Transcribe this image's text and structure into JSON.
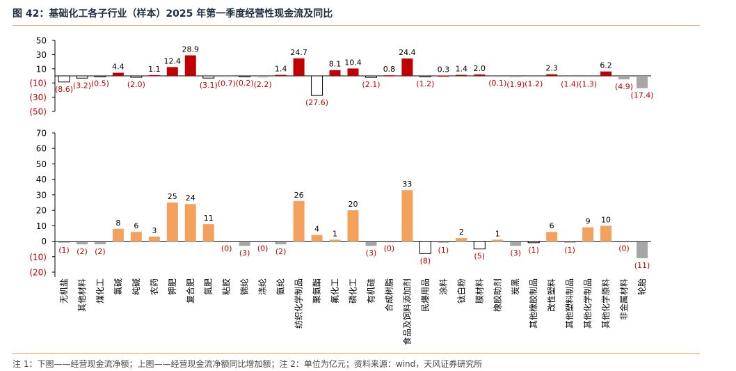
{
  "figure": {
    "title": "图 42：基础化工各子行业（样本）2025 年第一季度经营性现金流及同比",
    "note": "注 1：下图——经营现金流净额；上图——经营现金流净额同比增加额；注 2：单位为亿元；资料来源：wind，天风证券研究所"
  },
  "colors": {
    "positive_top": "#c00000",
    "negative_top": "#ffffff",
    "negative_top_border": "#000000",
    "muted_top": "#a6a6a6",
    "positive_bottom": "#f4a15d",
    "negative_bottom": "#a6a6a6",
    "highlight_bottom": "#ffffff",
    "negative_label": "#c00000",
    "positive_label": "#000000",
    "rule": "#f0a868"
  },
  "chart_data": [
    {
      "type": "bar",
      "title": "",
      "xlabel": "",
      "ylabel": "",
      "ylim": [
        -50,
        50
      ],
      "yticks": [
        "50",
        "30",
        "10",
        "(10)",
        "(30)",
        "(50)"
      ],
      "categories": [
        "无机盐",
        "其他材料",
        "煤化工",
        "氯碱",
        "纯碱",
        "农药",
        "钾肥",
        "复合肥",
        "氮肥",
        "粘胶",
        "锦纶",
        "涤纶",
        "氨纶",
        "纺织化学制品",
        "聚氨酯",
        "氟化工",
        "磷化工",
        "有机硅",
        "合成树脂",
        "食品及饲料添加剂",
        "民爆用品",
        "涂料",
        "钛白粉",
        "膜材料",
        "橡胶助剂",
        "炭黑",
        "其他橡胶制品",
        "改性塑料",
        "其他塑料制品",
        "其他化学制品",
        "其他化学原料",
        "非金属材料",
        "轮胎"
      ],
      "values": [
        -8.6,
        -3.2,
        -0.5,
        4.4,
        -2.0,
        1.1,
        12.4,
        28.9,
        -3.1,
        -0.7,
        -0.2,
        -2.2,
        1.4,
        24.7,
        -27.6,
        8.1,
        10.4,
        -2.1,
        0.8,
        24.4,
        -1.2,
        0.3,
        1.4,
        2.0,
        -0.1,
        -1.9,
        -1.2,
        2.3,
        -1.4,
        -1.3,
        6.2,
        -4.9,
        -17.4
      ],
      "labels": [
        "(8.6)",
        "(3.2)",
        "(0.5)",
        "4.4",
        "(2.0)",
        "1.1",
        "12.4",
        "28.9",
        "(3.1)",
        "(0.7)",
        "(0.2)",
        "(2.2)",
        "1.4",
        "24.7",
        "(27.6)",
        "8.1",
        "10.4",
        "(2.1)",
        "0.8",
        "24.4",
        "(1.2)",
        "0.3",
        "1.4",
        "2.0",
        "(0.1)",
        "(1.9)",
        "(1.2)",
        "2.3",
        "(1.4)",
        "(1.3)",
        "6.2",
        "(4.9)",
        "(17.4)"
      ],
      "muted": [
        false,
        false,
        false,
        false,
        false,
        false,
        false,
        false,
        false,
        true,
        false,
        true,
        false,
        false,
        false,
        false,
        false,
        false,
        false,
        false,
        false,
        false,
        false,
        false,
        true,
        true,
        true,
        false,
        true,
        true,
        false,
        true,
        true
      ],
      "grid": false,
      "legend": "none"
    },
    {
      "type": "bar",
      "title": "",
      "xlabel": "",
      "ylabel": "",
      "ylim": [
        -20,
        70
      ],
      "yticks": [
        "70",
        "60",
        "50",
        "40",
        "30",
        "20",
        "10",
        "0",
        "(10)",
        "(20)"
      ],
      "values": [
        -1,
        -2,
        -2,
        8,
        6,
        3,
        25,
        24,
        11,
        0,
        -3,
        0,
        -2,
        26,
        4,
        1,
        20,
        -3,
        0,
        33,
        -8,
        -1,
        2,
        -5,
        1,
        -3,
        -1,
        6,
        -1,
        9,
        10,
        0,
        -11
      ],
      "labels": [
        "(1)",
        "(2)",
        "(2)",
        "8",
        "6",
        "3",
        "25",
        "24",
        "11",
        "(0)",
        "(3)",
        "(0)",
        "(2)",
        "26",
        "4",
        "1",
        "20",
        "(3)",
        "(0)",
        "33",
        "(8)",
        "(1)",
        "2",
        "(5)",
        "1",
        "(3)",
        "(1)",
        "6",
        "(1)",
        "9",
        "10",
        "(0)",
        "(11)"
      ],
      "highlight": [
        false,
        false,
        false,
        false,
        false,
        false,
        false,
        false,
        false,
        false,
        false,
        false,
        false,
        false,
        false,
        false,
        false,
        false,
        false,
        false,
        true,
        false,
        false,
        true,
        false,
        false,
        true,
        false,
        false,
        false,
        false,
        false,
        false
      ],
      "grid": false,
      "legend": "none"
    }
  ]
}
